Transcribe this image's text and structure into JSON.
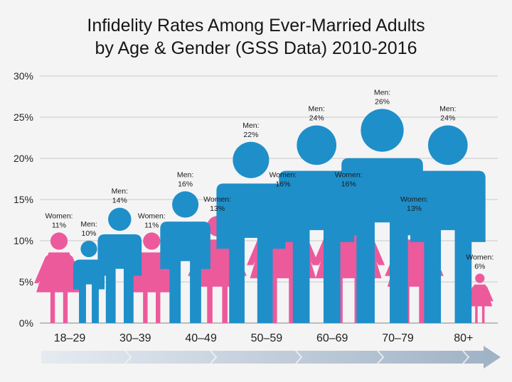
{
  "chart_data": {
    "type": "bar",
    "title_line1": "Infidelity Rates Among Ever-Married Adults",
    "title_line2": "by Age & Gender (GSS Data) 2010-2016",
    "categories": [
      "18–29",
      "30–39",
      "40–49",
      "50–59",
      "60–69",
      "70–79",
      "80+"
    ],
    "series": [
      {
        "name": "Women",
        "color": "#ec5a9c",
        "values": [
          11,
          11,
          13,
          16,
          16,
          13,
          6
        ],
        "labels": [
          "11%",
          "11%",
          "13%",
          "16%",
          "16%",
          "13%",
          "6%"
        ]
      },
      {
        "name": "Men",
        "color": "#1f8fc9",
        "values": [
          10,
          14,
          16,
          22,
          24,
          26,
          24
        ],
        "labels": [
          "10%",
          "14%",
          "16%",
          "22%",
          "24%",
          "26%",
          "24%"
        ]
      }
    ],
    "y_ticks": [
      "0%",
      "5%",
      "10%",
      "15%",
      "20%",
      "25%",
      "30%"
    ],
    "ylim": [
      0,
      30
    ],
    "grid": true,
    "legend": "none",
    "xlabel": "",
    "ylabel": ""
  },
  "colors": {
    "background": "#f4f4f4",
    "grid": "#c9c9c9",
    "arrow": "#a9b9cb"
  }
}
